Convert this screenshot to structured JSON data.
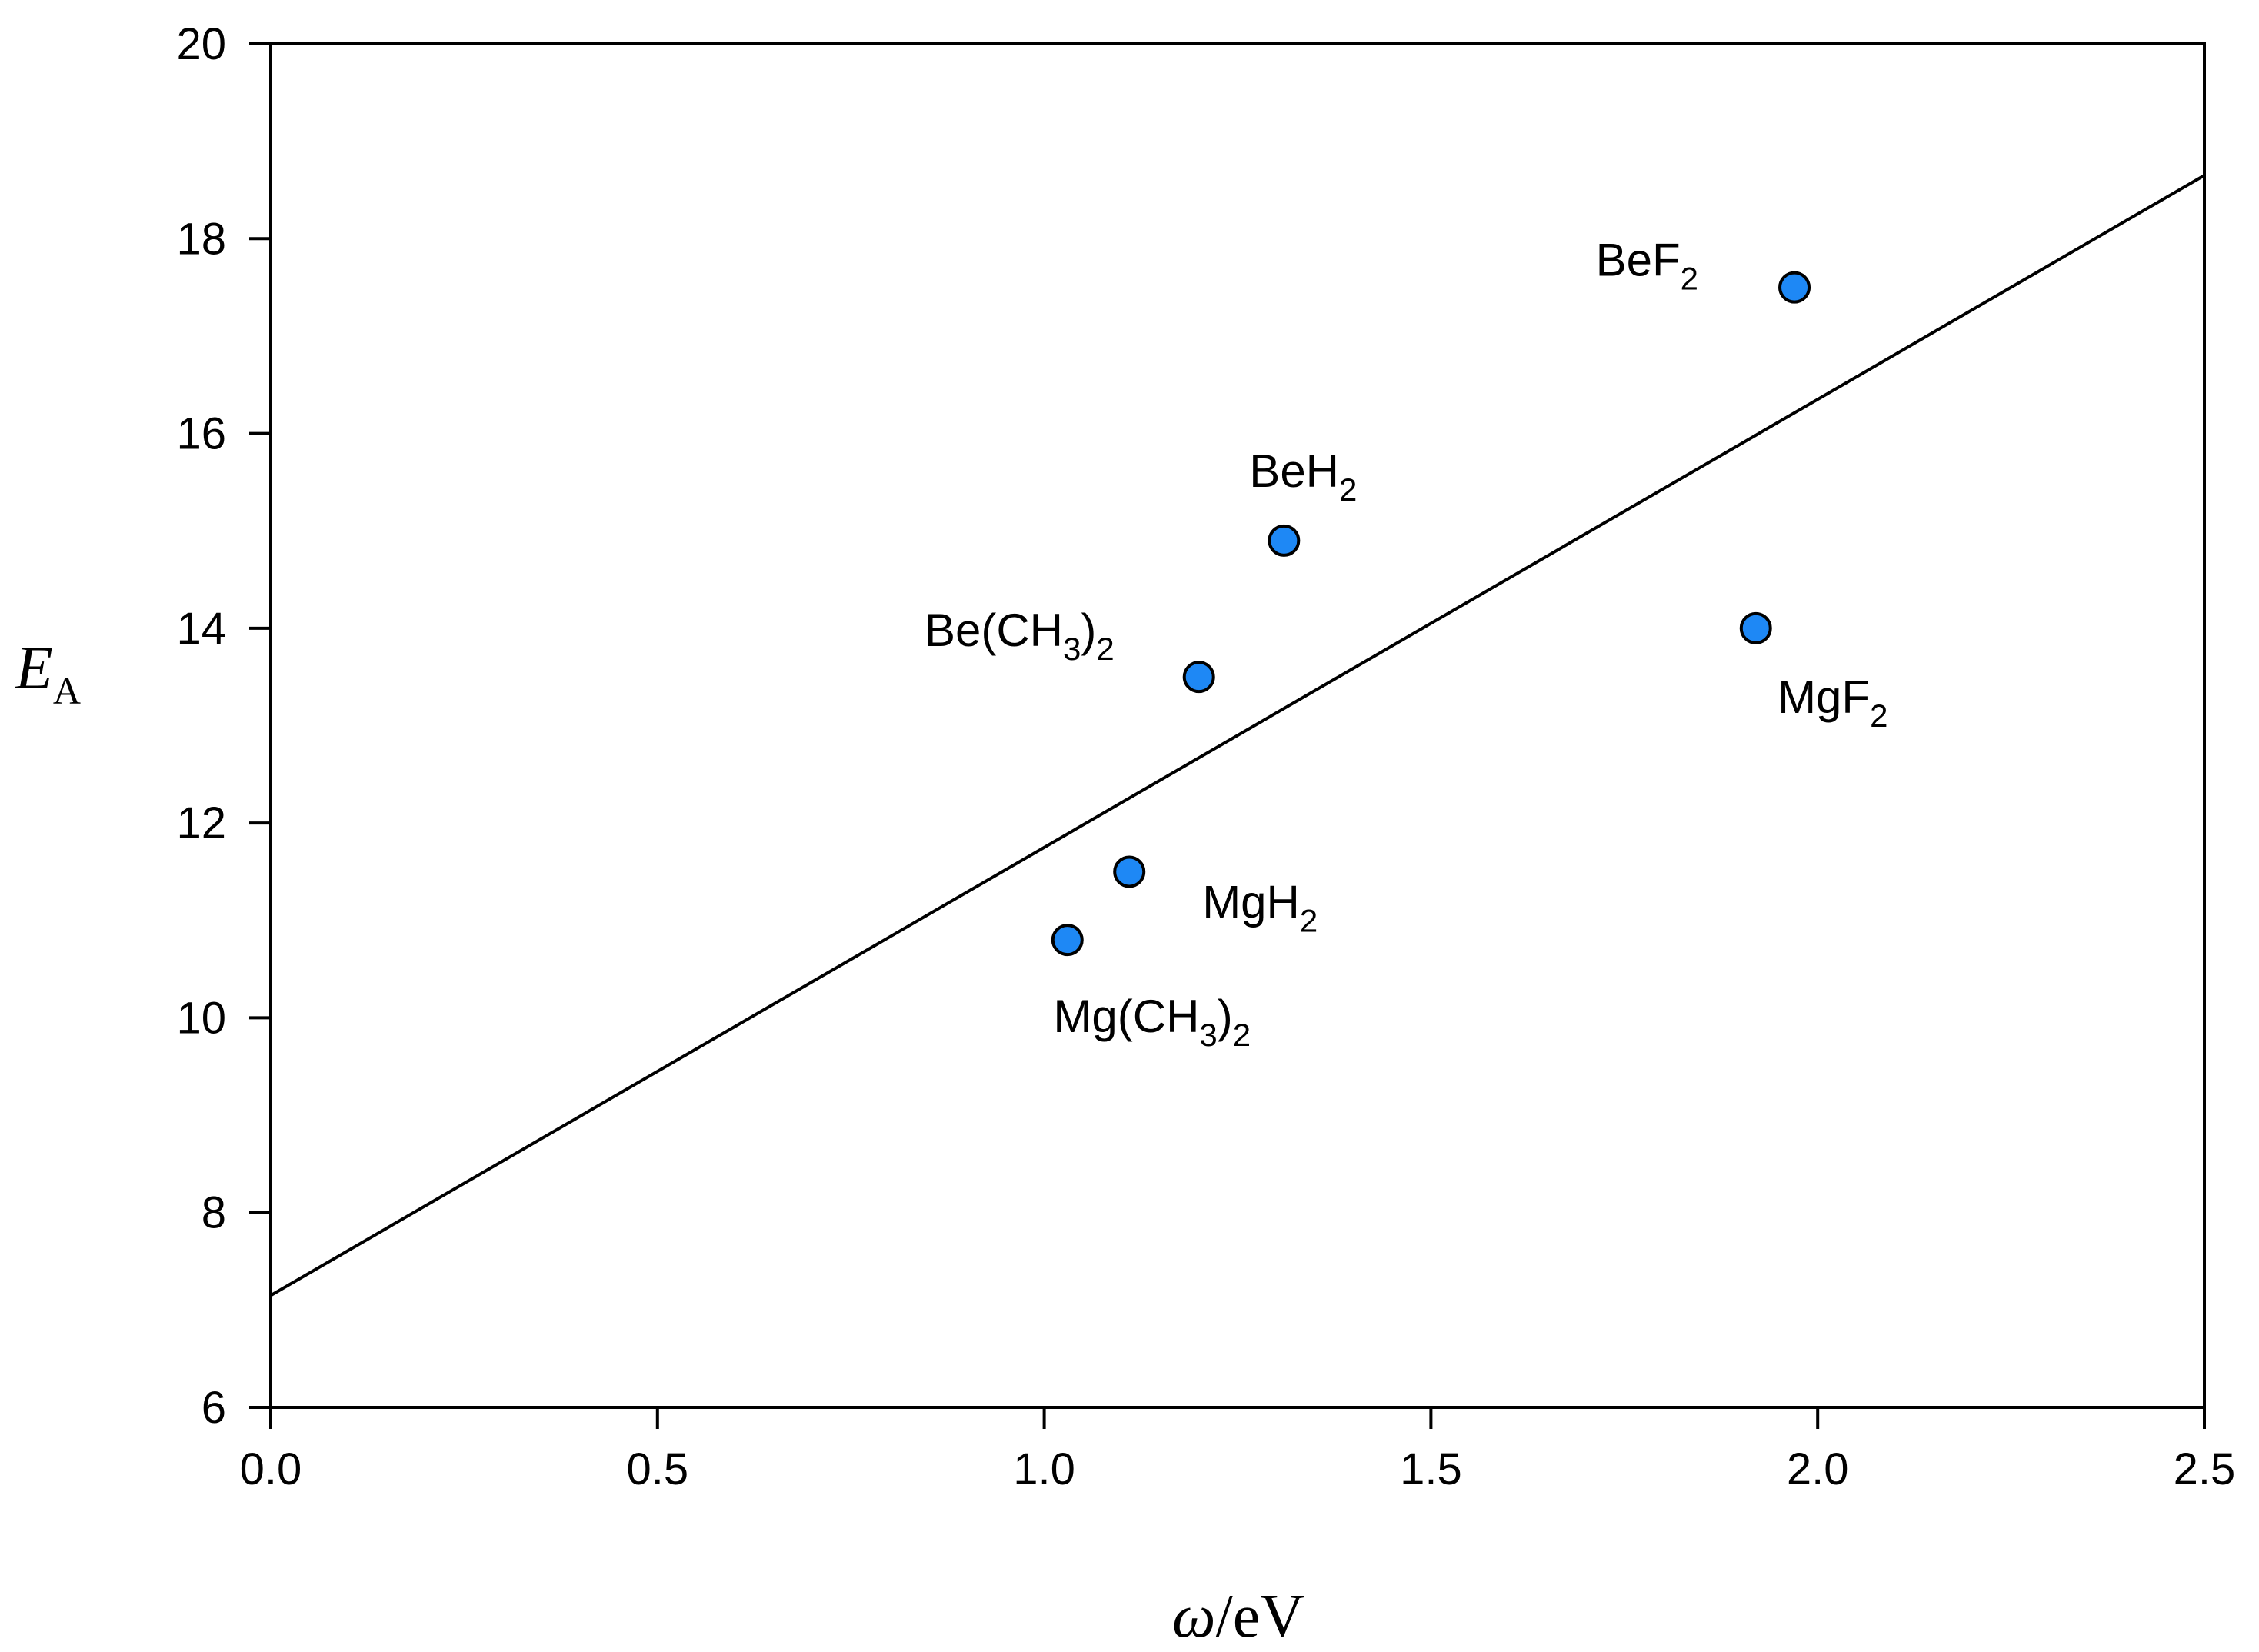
{
  "chart_data": {
    "type": "scatter",
    "title": "",
    "xlabel": {
      "symbol": "ω",
      "unit": "/eV"
    },
    "ylabel": {
      "symbol": "E",
      "subscript": "A"
    },
    "xlim": [
      0.0,
      2.5
    ],
    "ylim": [
      6,
      20
    ],
    "xticks": [
      "0.0",
      "0.5",
      "1.0",
      "1.5",
      "2.0",
      "2.5"
    ],
    "yticks": [
      "6",
      "8",
      "10",
      "12",
      "14",
      "16",
      "18",
      "20"
    ],
    "grid": false,
    "marker_color": "#1E88F5",
    "points": [
      {
        "name": "BeF2",
        "label_main": "BeF",
        "label_sub": "2",
        "label_tail": "",
        "label_tail_sub": "",
        "label_pos": "left",
        "x": 1.97,
        "y": 17.5
      },
      {
        "name": "BeH2",
        "label_main": "BeH",
        "label_sub": "2",
        "label_tail": "",
        "label_tail_sub": "",
        "label_pos": "above",
        "x": 1.31,
        "y": 14.9
      },
      {
        "name": "Be(CH3)2",
        "label_main": "Be(CH",
        "label_sub": "3",
        "label_tail": ")",
        "label_tail_sub": "2",
        "label_pos": "upper-left",
        "x": 1.2,
        "y": 13.5
      },
      {
        "name": "MgF2",
        "label_main": "MgF",
        "label_sub": "2",
        "label_tail": "",
        "label_tail_sub": "",
        "label_pos": "below",
        "x": 1.92,
        "y": 14.0
      },
      {
        "name": "MgH2",
        "label_main": "MgH",
        "label_sub": "2",
        "label_tail": "",
        "label_tail_sub": "",
        "label_pos": "lower-right",
        "x": 1.11,
        "y": 11.5
      },
      {
        "name": "Mg(CH3)2",
        "label_main": "Mg(CH",
        "label_sub": "3",
        "label_tail": ")",
        "label_tail_sub": "2",
        "label_pos": "below",
        "x": 1.03,
        "y": 10.8
      }
    ],
    "fit_line": {
      "x": [
        0.0,
        2.5
      ],
      "y": [
        7.15,
        18.65
      ]
    }
  }
}
